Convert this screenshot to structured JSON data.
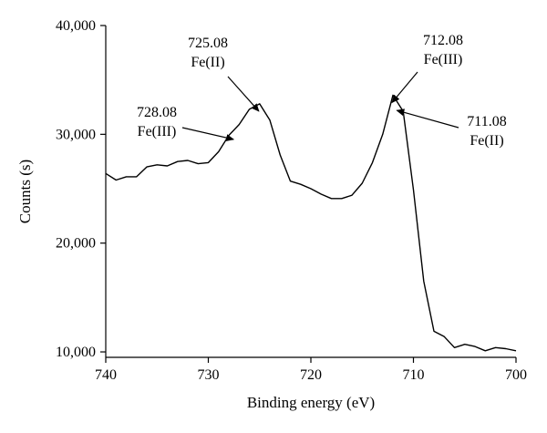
{
  "chart_data": {
    "type": "line",
    "xlabel": "Binding energy (eV)",
    "ylabel": "Counts (s)",
    "xlim": [
      740,
      700
    ],
    "ylim": [
      9500,
      40000
    ],
    "x_reversed": true,
    "grid": false,
    "xticks": [
      740,
      730,
      720,
      710,
      700
    ],
    "xtick_labels": [
      "740",
      "730",
      "720",
      "710",
      "700"
    ],
    "yticks": [
      10000,
      20000,
      30000,
      40000
    ],
    "ytick_labels": [
      "10,000",
      "20,000",
      "30,000",
      "40,000"
    ],
    "series": [
      {
        "x": [
          740,
          739,
          738,
          737,
          736,
          735,
          734,
          733,
          732,
          731,
          730,
          729,
          728,
          727,
          726,
          725,
          724,
          723,
          722,
          721,
          720,
          719,
          718,
          717,
          716,
          715,
          714,
          713,
          712,
          711,
          710,
          709,
          708,
          707,
          706,
          705,
          704,
          703,
          702,
          701,
          700
        ],
        "values": [
          26400,
          25800,
          26100,
          26100,
          27000,
          27200,
          27100,
          27500,
          27600,
          27300,
          27400,
          28400,
          29900,
          30900,
          32300,
          32800,
          31300,
          28100,
          25700,
          25400,
          25000,
          24500,
          24100,
          24100,
          24400,
          25500,
          27400,
          30000,
          33600,
          32100,
          24900,
          16500,
          11900,
          11400,
          10400,
          10700,
          10500,
          10100,
          10400,
          10300,
          10100
        ]
      }
    ],
    "annotations": [
      {
        "lines": [
          "728.08",
          "Fe(III)"
        ],
        "target": {
          "x": 728.08,
          "y": 29700
        }
      },
      {
        "lines": [
          "725.08",
          "Fe(II)"
        ],
        "target": {
          "x": 725.08,
          "y": 32800
        }
      },
      {
        "lines": [
          "712.08",
          "Fe(III)"
        ],
        "target": {
          "x": 712.08,
          "y": 33600
        }
      },
      {
        "lines": [
          "711.08",
          "Fe(II)"
        ],
        "target": {
          "x": 711.08,
          "y": 32200
        }
      }
    ]
  }
}
